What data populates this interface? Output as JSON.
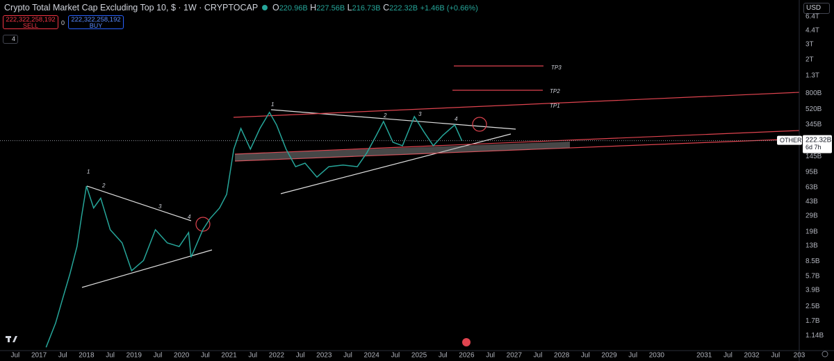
{
  "chart_data": {
    "type": "line",
    "log_scale": true,
    "grid": false,
    "color": "#26a69a",
    "x": [
      2017.15,
      2017.35,
      2017.5,
      2017.65,
      2017.8,
      2017.9,
      2018.0,
      2018.15,
      2018.3,
      2018.5,
      2018.75,
      2018.95,
      2019.2,
      2019.45,
      2019.7,
      2019.95,
      2020.15,
      2020.2,
      2020.45,
      2020.6,
      2020.8,
      2020.95,
      2021.1,
      2021.25,
      2021.45,
      2021.65,
      2021.85,
      2022.0,
      2022.2,
      2022.4,
      2022.6,
      2022.85,
      2023.1,
      2023.4,
      2023.7,
      2023.9,
      2024.1,
      2024.25,
      2024.45,
      2024.65,
      2024.9,
      2025.1,
      2025.3,
      2025.5,
      2025.75,
      2025.9
    ],
    "values": [
      830000000.0,
      1600000000.0,
      3100000000.0,
      6000000000.0,
      12700000000.0,
      29500000000.0,
      65000000000.0,
      36000000000.0,
      47000000000.0,
      20000000000.0,
      14000000000.0,
      6600000000.0,
      8700000000.0,
      20000000000.0,
      14000000000.0,
      12700000000.0,
      18500000000.0,
      9500000000.0,
      20000000000.0,
      27000000000.0,
      36000000000.0,
      52000000000.0,
      177000000000.0,
      310000000000.0,
      177000000000.0,
      310000000000.0,
      478000000000.0,
      341000000000.0,
      177000000000.0,
      110000000000.0,
      121000000000.0,
      83000000000.0,
      110000000000.0,
      115000000000.0,
      110000000000.0,
      160000000000.0,
      257000000000.0,
      374000000000.0,
      213000000000.0,
      194000000000.0,
      427000000000.0,
      283000000000.0,
      194000000000.0,
      257000000000.0,
      341000000000.0,
      222320000000.0
    ],
    "xlim": [
      2016.18,
      2033.0
    ],
    "xticks": [
      {
        "value": 2016.5,
        "label": "Jul"
      },
      2017,
      {
        "value": 2017.5,
        "label": "Jul"
      },
      2018,
      {
        "value": 2018.5,
        "label": "Jul"
      },
      2019,
      {
        "value": 2019.5,
        "label": "Jul"
      },
      2020,
      {
        "value": 2020.5,
        "label": "Jul"
      },
      2021,
      {
        "value": 2021.5,
        "label": "Jul"
      },
      2022,
      {
        "value": 2022.5,
        "label": "Jul"
      },
      2023,
      {
        "value": 2023.5,
        "label": "Jul"
      },
      2024,
      {
        "value": 2024.5,
        "label": "Jul"
      },
      2025,
      {
        "value": 2025.5,
        "label": "Jul"
      },
      2026,
      {
        "value": 2026.5,
        "label": "Jul"
      },
      2027,
      {
        "value": 2027.5,
        "label": "Jul"
      },
      2028,
      {
        "value": 2028.5,
        "label": "Jul"
      },
      2029,
      {
        "value": 2029.5,
        "label": "Jul"
      },
      2030,
      2031,
      {
        "value": 2031.5,
        "label": "Jul"
      },
      2032,
      {
        "value": 2032.5,
        "label": "Jul"
      },
      {
        "value": 2033,
        "label": "203"
      }
    ],
    "ylim": [
      760000000.0,
      10000000000000.0
    ],
    "yticks": [
      {
        "value": 1140000000.0,
        "label": "1.14B"
      },
      {
        "value": 1700000000.0,
        "label": "1.7B"
      },
      {
        "value": 2500000000.0,
        "label": "2.5B"
      },
      {
        "value": 3900000000.0,
        "label": "3.9B"
      },
      {
        "value": 5700000000.0,
        "label": "5.7B"
      },
      {
        "value": 8500000000.0,
        "label": "8.5B"
      },
      {
        "value": 13000000000.0,
        "label": "13B"
      },
      {
        "value": 19000000000.0,
        "label": "19B"
      },
      {
        "value": 29000000000.0,
        "label": "29B"
      },
      {
        "value": 43000000000.0,
        "label": "43B"
      },
      {
        "value": 63000000000.0,
        "label": "63B"
      },
      {
        "value": 95000000000.0,
        "label": "95B"
      },
      {
        "value": 145000000000.0,
        "label": "145B"
      },
      {
        "value": 345000000000.0,
        "label": "345B"
      },
      {
        "value": 520000000000.0,
        "label": "520B"
      },
      {
        "value": 800000000000.0,
        "label": "800B"
      },
      {
        "value": 1300000000000.0,
        "label": "1.3T"
      },
      {
        "value": 2000000000000.0,
        "label": "2T"
      },
      {
        "value": 3000000000000.0,
        "label": "3T"
      },
      {
        "value": 4400000000000.0,
        "label": "4.4T"
      },
      {
        "value": 6400000000000.0,
        "label": "6.4T"
      }
    ],
    "annotations": [
      "1",
      "2",
      "3",
      "4",
      "1",
      "2",
      "3",
      "4",
      "TP3",
      "TP2",
      "TP1"
    ]
  },
  "ui": {
    "title": "Crypto Total Market Cap Excluding Top 10, $ · 1W · CRYPTOCAP",
    "o_key": "O",
    "o": "220.96B",
    "h_key": "H",
    "h": "227.56B",
    "l_key": "L",
    "l": "216.73B",
    "c_key": "C",
    "c": "222.32B",
    "change": "+1.46B (+0.66%)",
    "sell_price": "222,322,258,192",
    "sell": "SELL",
    "spread": "0",
    "buy_price": "222,322,258,192",
    "buy": "BUY",
    "indicators": "4",
    "currency": "USD",
    "symbol_tag": "OTHERS",
    "last_price": "222.32B",
    "countdown": "6d 7h"
  }
}
